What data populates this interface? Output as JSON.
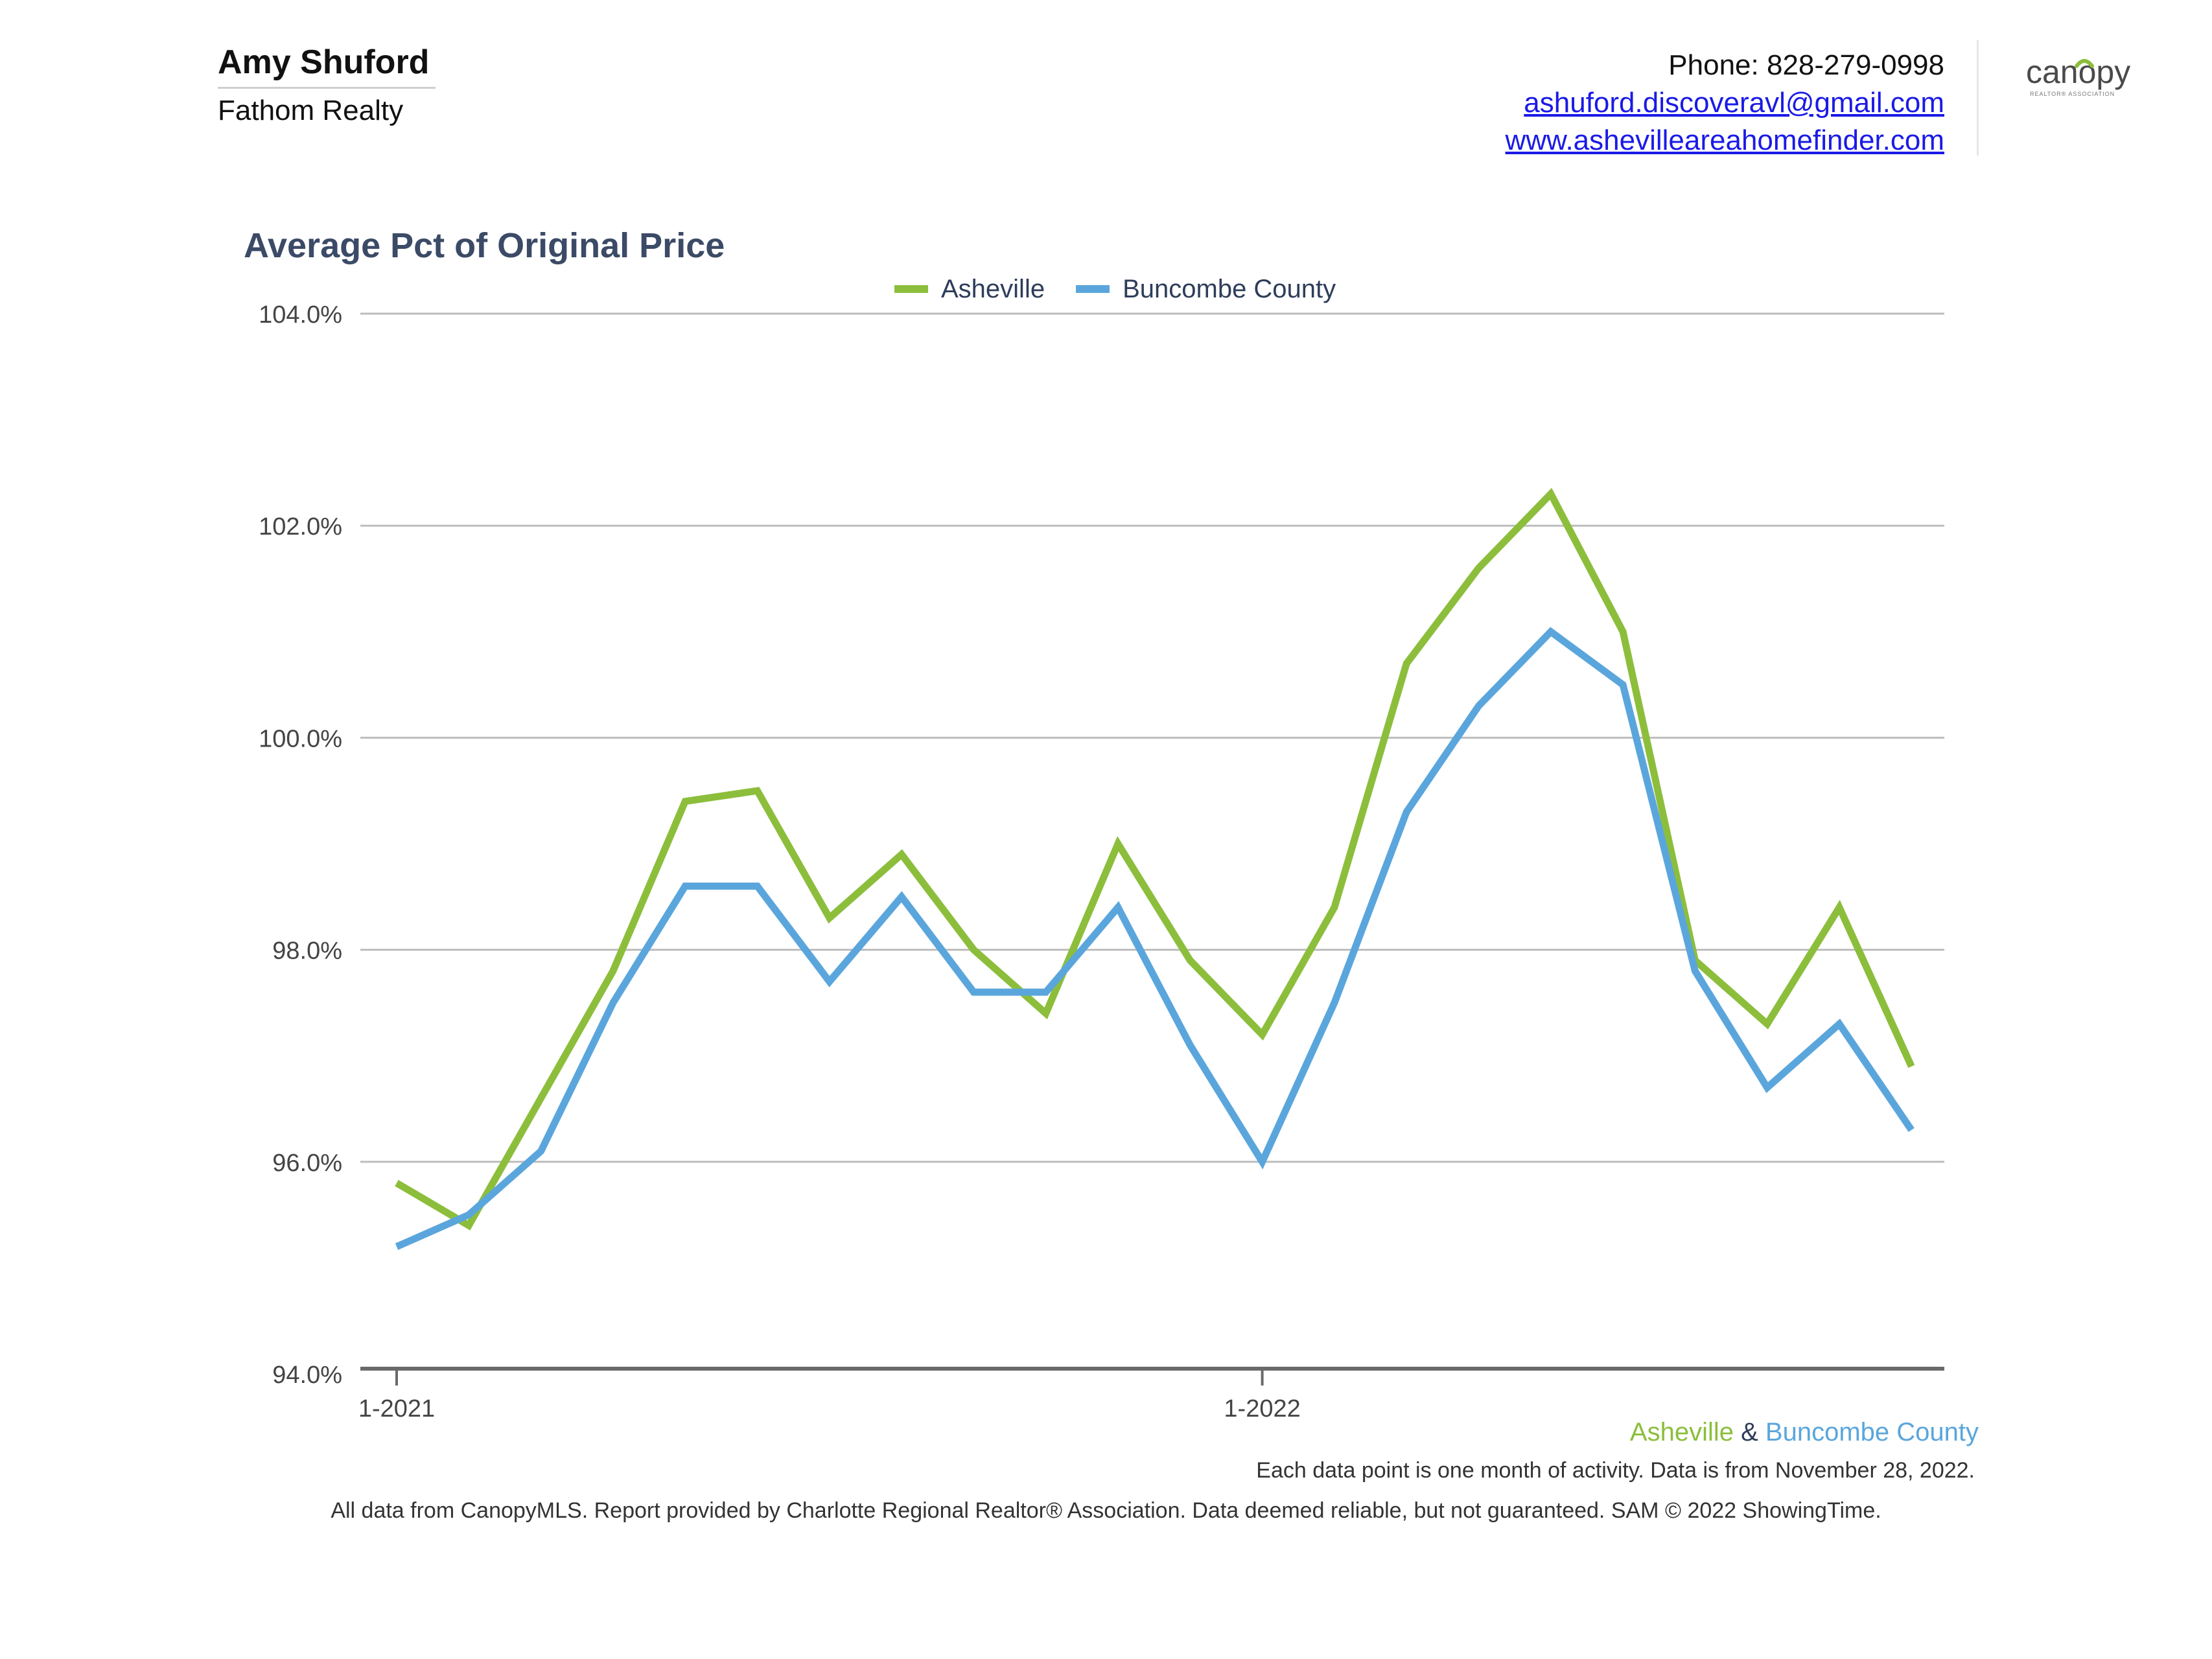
{
  "header": {
    "agent_name": "Amy Shuford",
    "company": "Fathom Realty",
    "phone": "Phone: 828-279-0998",
    "email": "ashuford.discoveravl@gmail.com",
    "website": "www.ashevilleareahomefinder.com",
    "logo_text": "canopy",
    "logo_subtext": "REALTOR® ASSOCIATION"
  },
  "colors": {
    "asheville": "#8cbe3c",
    "buncombe": "#5aa6dc",
    "title": "#3b4a66",
    "grid": "#bdbdbd",
    "axis": "#6a6a6a"
  },
  "chart_data": {
    "type": "line",
    "title": "Average Pct of Original Price",
    "x": [
      "2021-01",
      "2021-02",
      "2021-03",
      "2021-04",
      "2021-05",
      "2021-06",
      "2021-07",
      "2021-08",
      "2021-09",
      "2021-10",
      "2021-11",
      "2021-12",
      "2022-01",
      "2022-02",
      "2022-03",
      "2022-04",
      "2022-05",
      "2022-06",
      "2022-07",
      "2022-08",
      "2022-09",
      "2022-10"
    ],
    "x_tick_labels": [
      {
        "index": 0,
        "label": "1-2021"
      },
      {
        "index": 12,
        "label": "1-2022"
      }
    ],
    "ylim": [
      94.0,
      104.0
    ],
    "y_ticks": [
      94.0,
      96.0,
      98.0,
      100.0,
      102.0,
      104.0
    ],
    "y_tick_labels": [
      "94.0%",
      "96.0%",
      "98.0%",
      "100.0%",
      "102.0%",
      "104.0%"
    ],
    "grid": true,
    "legend": "top-center",
    "series": [
      {
        "name": "Asheville",
        "color": "#8cbe3c",
        "values": [
          95.8,
          95.4,
          96.6,
          97.8,
          99.4,
          99.5,
          98.3,
          98.9,
          98.0,
          97.4,
          99.0,
          97.9,
          97.2,
          98.4,
          100.7,
          101.6,
          102.3,
          101.0,
          97.9,
          97.3,
          98.4,
          96.9
        ]
      },
      {
        "name": "Buncombe County",
        "color": "#5aa6dc",
        "values": [
          95.2,
          95.5,
          96.1,
          97.5,
          98.6,
          98.6,
          97.7,
          98.5,
          97.6,
          97.6,
          98.4,
          97.1,
          96.0,
          97.5,
          99.3,
          100.3,
          101.0,
          100.5,
          97.8,
          96.7,
          97.3,
          96.3
        ]
      }
    ]
  },
  "footer": {
    "series_1": "Asheville",
    "ampersand": "&",
    "series_2": "Buncombe County",
    "note": "Each data point is one month of activity. Data is from November 28, 2022.",
    "disclaimer": "All data from CanopyMLS. Report provided by Charlotte Regional Realtor® Association. Data deemed reliable, but not guaranteed. SAM © 2022 ShowingTime."
  }
}
